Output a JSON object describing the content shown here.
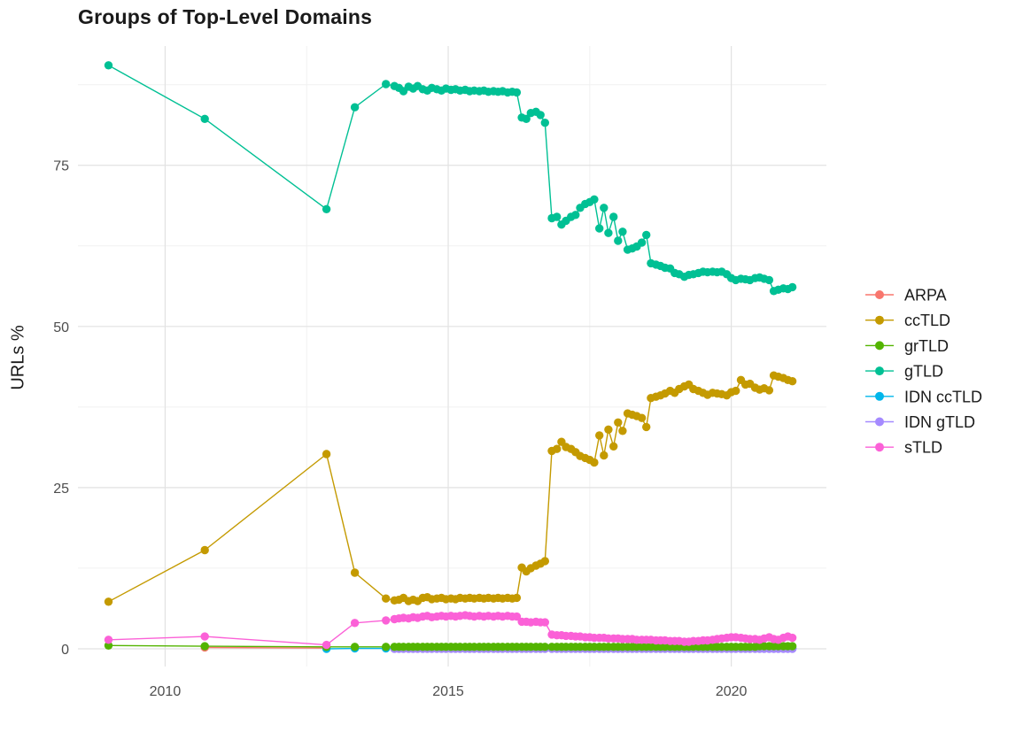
{
  "chart_data": {
    "type": "line",
    "title": "Groups of Top-Level Domains",
    "xlabel": "",
    "ylabel": "URLs %",
    "background": "#FFFFFF",
    "grid": true,
    "grid_major_color": "#E2E2E2",
    "grid_minor_color": "#F1F1F1",
    "tick_label_color": "#4D4D4D",
    "text_color": "#1A1A1A",
    "legend_position": "right",
    "xlim": [
      2008.46,
      2021.68
    ],
    "ylim": [
      -2.75,
      93.5
    ],
    "x_ticks": {
      "values": [
        2010,
        2015,
        2020
      ],
      "labels": [
        "2010",
        "2015",
        "2020"
      ]
    },
    "x_minor": [
      2012.5,
      2017.5
    ],
    "y_ticks": {
      "values": [
        0,
        25,
        50,
        75
      ],
      "labels": [
        "0",
        "25",
        "50",
        "75"
      ]
    },
    "y_minor": [
      12.5,
      37.5,
      62.5,
      87.5
    ],
    "dense_x": [
      2013.35,
      2013.9,
      2014.05,
      2014.13,
      2014.21,
      2014.3,
      2014.38,
      2014.46,
      2014.55,
      2014.63,
      2014.71,
      2014.8,
      2014.88,
      2014.96,
      2015.05,
      2015.13,
      2015.21,
      2015.3,
      2015.38,
      2015.46,
      2015.55,
      2015.63,
      2015.71,
      2015.8,
      2015.88,
      2015.96,
      2016.05,
      2016.13,
      2016.21,
      2016.3,
      2016.38,
      2016.46,
      2016.55,
      2016.63,
      2016.71,
      2016.83,
      2016.92,
      2017.0,
      2017.08,
      2017.17,
      2017.25,
      2017.33,
      2017.42,
      2017.5,
      2017.58,
      2017.67,
      2017.75,
      2017.83,
      2017.92,
      2018.0,
      2018.08,
      2018.17,
      2018.25,
      2018.33,
      2018.42,
      2018.5,
      2018.58,
      2018.67,
      2018.75,
      2018.83,
      2018.92,
      2019.0,
      2019.08,
      2019.17,
      2019.25,
      2019.33,
      2019.42,
      2019.5,
      2019.58,
      2019.67,
      2019.75,
      2019.83,
      2019.92,
      2020.0,
      2020.08,
      2020.17,
      2020.25,
      2020.33,
      2020.42,
      2020.5,
      2020.58,
      2020.67,
      2020.75,
      2020.83,
      2020.92,
      2021.0,
      2021.08
    ],
    "draw_order": [
      "ARPA",
      "IDN ccTLD",
      "IDN gTLD",
      "grTLD",
      "ccTLD",
      "gTLD",
      "sTLD"
    ],
    "series": [
      {
        "name": "ARPA",
        "color": "#F8766D",
        "points": [
          [
            2010.7,
            0.2
          ],
          [
            2012.85,
            0.1
          ]
        ],
        "dense_y": null
      },
      {
        "name": "ccTLD",
        "color": "#C49A00",
        "points": [
          [
            2009.0,
            7.3
          ],
          [
            2010.7,
            15.3
          ],
          [
            2012.85,
            30.2
          ]
        ],
        "dense_y": [
          11.8,
          7.8,
          7.5,
          7.6,
          7.9,
          7.4,
          7.6,
          7.4,
          7.9,
          8.0,
          7.7,
          7.8,
          7.9,
          7.7,
          7.8,
          7.7,
          7.9,
          7.8,
          7.9,
          7.8,
          7.9,
          7.8,
          7.9,
          7.8,
          7.9,
          7.8,
          7.9,
          7.8,
          7.9,
          12.6,
          12.0,
          12.5,
          12.9,
          13.2,
          13.6,
          30.7,
          31.0,
          32.1,
          31.3,
          31.0,
          30.5,
          29.9,
          29.6,
          29.3,
          28.9,
          33.1,
          30.0,
          34.0,
          31.4,
          35.1,
          33.8,
          36.5,
          36.3,
          36.1,
          35.8,
          34.4,
          38.9,
          39.1,
          39.3,
          39.6,
          40.0,
          39.7,
          40.3,
          40.7,
          41.0,
          40.3,
          40.0,
          39.7,
          39.4,
          39.7,
          39.6,
          39.5,
          39.3,
          39.8,
          40.0,
          41.7,
          41.0,
          41.1,
          40.5,
          40.2,
          40.4,
          40.1,
          42.4,
          42.2,
          42.0,
          41.7,
          41.5
        ]
      },
      {
        "name": "grTLD",
        "color": "#53B400",
        "points": [
          [
            2009.0,
            0.5
          ],
          [
            2010.7,
            0.4
          ],
          [
            2012.85,
            0.3
          ]
        ],
        "dense_y": [
          0.3,
          0.3,
          0.3,
          0.3,
          0.3,
          0.3,
          0.3,
          0.3,
          0.3,
          0.3,
          0.3,
          0.3,
          0.3,
          0.3,
          0.3,
          0.3,
          0.3,
          0.3,
          0.3,
          0.3,
          0.3,
          0.3,
          0.3,
          0.3,
          0.3,
          0.3,
          0.3,
          0.3,
          0.3,
          0.3,
          0.3,
          0.3,
          0.3,
          0.3,
          0.3,
          0.3,
          0.3,
          0.3,
          0.3,
          0.3,
          0.3,
          0.3,
          0.3,
          0.3,
          0.3,
          0.3,
          0.3,
          0.3,
          0.3,
          0.3,
          0.3,
          0.3,
          0.3,
          0.3,
          0.3,
          0.3,
          0.3,
          0.3,
          0.3,
          0.3,
          0.3,
          0.3,
          0.3,
          0.3,
          0.3,
          0.3,
          0.3,
          0.3,
          0.3,
          0.3,
          0.3,
          0.3,
          0.3,
          0.3,
          0.3,
          0.3,
          0.3,
          0.3,
          0.3,
          0.4,
          0.4,
          0.4,
          0.4,
          0.4,
          0.4,
          0.4,
          0.4
        ]
      },
      {
        "name": "gTLD",
        "color": "#00C094",
        "points": [
          [
            2009.0,
            90.5
          ],
          [
            2010.7,
            82.2
          ],
          [
            2012.85,
            68.2
          ]
        ],
        "dense_y": [
          84.0,
          87.6,
          87.3,
          87.0,
          86.5,
          87.2,
          86.9,
          87.3,
          86.8,
          86.6,
          87.0,
          86.8,
          86.6,
          86.9,
          86.7,
          86.8,
          86.6,
          86.7,
          86.5,
          86.6,
          86.5,
          86.6,
          86.4,
          86.5,
          86.4,
          86.5,
          86.3,
          86.4,
          86.3,
          82.4,
          82.2,
          83.1,
          83.3,
          82.8,
          81.6,
          66.8,
          67.0,
          65.8,
          66.4,
          67.0,
          67.3,
          68.4,
          69.0,
          69.3,
          69.7,
          65.2,
          68.4,
          64.5,
          67.0,
          63.3,
          64.7,
          61.9,
          62.1,
          62.4,
          63.0,
          64.2,
          59.8,
          59.6,
          59.4,
          59.1,
          59.0,
          58.3,
          58.1,
          57.7,
          58.0,
          58.1,
          58.3,
          58.5,
          58.4,
          58.5,
          58.4,
          58.5,
          58.1,
          57.5,
          57.2,
          57.4,
          57.3,
          57.2,
          57.5,
          57.6,
          57.4,
          57.2,
          55.5,
          55.7,
          55.9,
          55.8,
          56.1
        ]
      },
      {
        "name": "IDN ccTLD",
        "color": "#00B6EB",
        "points": [
          [
            2012.85,
            0.0
          ]
        ],
        "dense_y": [
          0.05,
          0.05,
          0.05,
          0.05,
          0.05,
          0.05,
          0.05,
          0.05,
          0.05,
          0.05,
          0.05,
          0.05,
          0.05,
          0.05,
          0.05,
          0.05,
          0.05,
          0.05,
          0.05,
          0.05,
          0.05,
          0.05,
          0.05,
          0.05,
          0.05,
          0.05,
          0.05,
          0.05,
          0.05,
          0.05,
          0.05,
          0.05,
          0.05,
          0.05,
          0.05,
          0.05,
          0.05,
          0.05,
          0.05,
          0.05,
          0.05,
          0.05,
          0.05,
          0.05,
          0.05,
          0.05,
          0.05,
          0.05,
          0.05,
          0.05,
          0.05,
          0.05,
          0.05,
          0.05,
          0.05,
          0.05,
          0.05,
          0.05,
          0.05,
          0.05,
          0.05,
          0.05,
          0.05,
          0.05,
          0.05,
          0.05,
          0.05,
          0.05,
          0.05,
          0.05,
          0.05,
          0.05,
          0.05,
          0.05,
          0.05,
          0.05,
          0.05,
          0.05,
          0.05,
          0.05,
          0.05,
          0.05,
          0.05,
          0.05,
          0.05,
          0.05,
          0.05
        ]
      },
      {
        "name": "IDN gTLD",
        "color": "#A58AFF",
        "points": [],
        "dense_y": [
          null,
          null,
          0.0,
          0.0,
          0.0,
          0.0,
          0.0,
          0.0,
          0.0,
          0.0,
          0.0,
          0.0,
          0.0,
          0.0,
          0.0,
          0.0,
          0.0,
          0.0,
          0.0,
          0.0,
          0.0,
          0.0,
          0.0,
          0.0,
          0.0,
          0.0,
          0.0,
          0.0,
          0.0,
          0.0,
          0.0,
          0.0,
          0.0,
          0.0,
          0.0,
          0.0,
          0.0,
          0.0,
          0.0,
          0.0,
          0.0,
          0.0,
          0.0,
          0.0,
          0.0,
          0.0,
          0.0,
          0.0,
          0.0,
          0.0,
          0.0,
          0.0,
          0.0,
          0.0,
          0.0,
          0.0,
          0.0,
          0.0,
          0.0,
          0.0,
          0.0,
          0.0,
          0.0,
          0.0,
          0.0,
          0.0,
          0.0,
          0.0,
          0.0,
          0.0,
          0.0,
          0.0,
          0.0,
          0.0,
          0.0,
          0.0,
          0.0,
          0.0,
          0.0,
          0.0,
          0.0,
          0.0,
          0.0,
          0.0,
          0.0,
          0.0,
          0.0
        ]
      },
      {
        "name": "sTLD",
        "color": "#FB61D7",
        "points": [
          [
            2009.0,
            1.4
          ],
          [
            2010.7,
            1.9
          ],
          [
            2012.85,
            0.6
          ]
        ],
        "dense_y": [
          4.0,
          4.4,
          4.6,
          4.7,
          4.8,
          4.7,
          4.9,
          4.8,
          5.0,
          5.1,
          4.9,
          5.0,
          5.1,
          5.0,
          5.1,
          5.0,
          5.1,
          5.2,
          5.1,
          5.0,
          5.1,
          5.0,
          5.1,
          5.0,
          5.1,
          5.0,
          5.1,
          5.0,
          5.0,
          4.2,
          4.2,
          4.1,
          4.2,
          4.1,
          4.1,
          2.2,
          2.1,
          2.1,
          2.0,
          2.0,
          1.9,
          1.9,
          1.8,
          1.8,
          1.7,
          1.7,
          1.7,
          1.6,
          1.6,
          1.6,
          1.5,
          1.5,
          1.5,
          1.4,
          1.4,
          1.4,
          1.4,
          1.3,
          1.3,
          1.3,
          1.2,
          1.2,
          1.2,
          1.1,
          1.1,
          1.2,
          1.2,
          1.3,
          1.3,
          1.4,
          1.5,
          1.6,
          1.7,
          1.8,
          1.8,
          1.7,
          1.6,
          1.5,
          1.5,
          1.4,
          1.6,
          1.8,
          1.5,
          1.4,
          1.7,
          1.9,
          1.7
        ]
      }
    ],
    "legend": {
      "items": [
        {
          "label": "ARPA",
          "color": "#F8766D"
        },
        {
          "label": "ccTLD",
          "color": "#C49A00"
        },
        {
          "label": "grTLD",
          "color": "#53B400"
        },
        {
          "label": "gTLD",
          "color": "#00C094"
        },
        {
          "label": "IDN ccTLD",
          "color": "#00B6EB"
        },
        {
          "label": "IDN gTLD",
          "color": "#A58AFF"
        },
        {
          "label": "sTLD",
          "color": "#FB61D7"
        }
      ]
    }
  }
}
